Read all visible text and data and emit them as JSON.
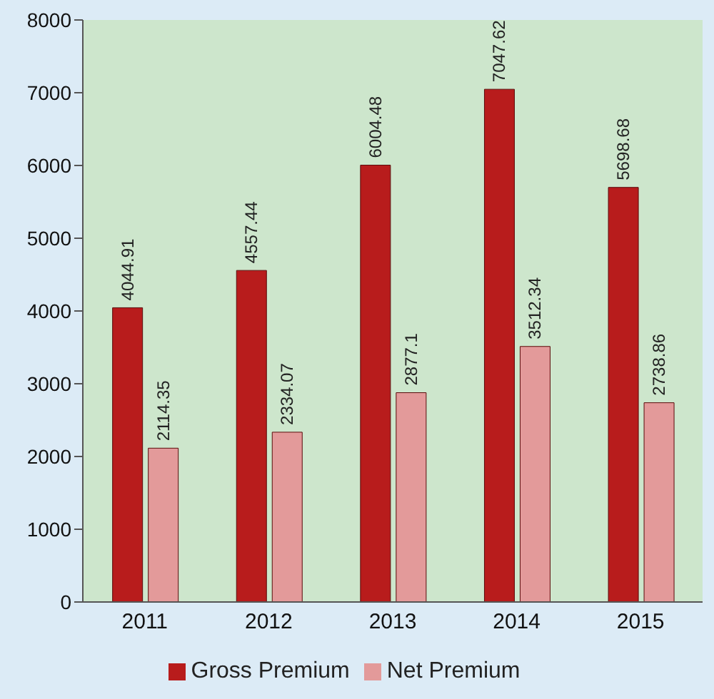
{
  "chart_data": {
    "type": "bar",
    "categories": [
      "2011",
      "2012",
      "2013",
      "2014",
      "2015"
    ],
    "series": [
      {
        "name": "Gross Premium",
        "color": "#b81c1c",
        "values": [
          4044.91,
          4557.44,
          6004.48,
          7047.62,
          5698.68
        ]
      },
      {
        "name": "Net Premium",
        "color": "#e39a9a",
        "values": [
          2114.35,
          2334.07,
          2877.1,
          3512.34,
          2738.86
        ]
      }
    ],
    "ylim": [
      0,
      8000
    ],
    "yticks": [
      0,
      1000,
      2000,
      3000,
      4000,
      5000,
      6000,
      7000,
      8000
    ],
    "grid": false,
    "legend": "bottom",
    "data_labels": true
  }
}
